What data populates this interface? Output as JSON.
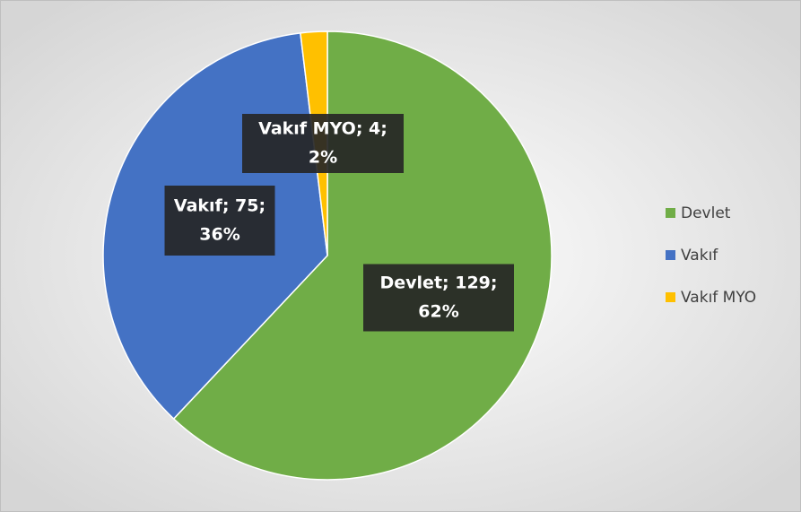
{
  "chart_data": {
    "type": "pie",
    "categories": [
      "Devlet",
      "Vakıf",
      "Vakıf MYO"
    ],
    "values": [
      129,
      75,
      4
    ],
    "value_labels": [
      [
        "Devlet; 129;",
        "62%"
      ],
      [
        "Vakıf; 75;",
        "36%"
      ],
      [
        "Vakıf MYO; 4;",
        "2%"
      ]
    ],
    "colors": [
      "#70ad47",
      "#4472c4",
      "#ffc000"
    ],
    "legend": "right"
  }
}
